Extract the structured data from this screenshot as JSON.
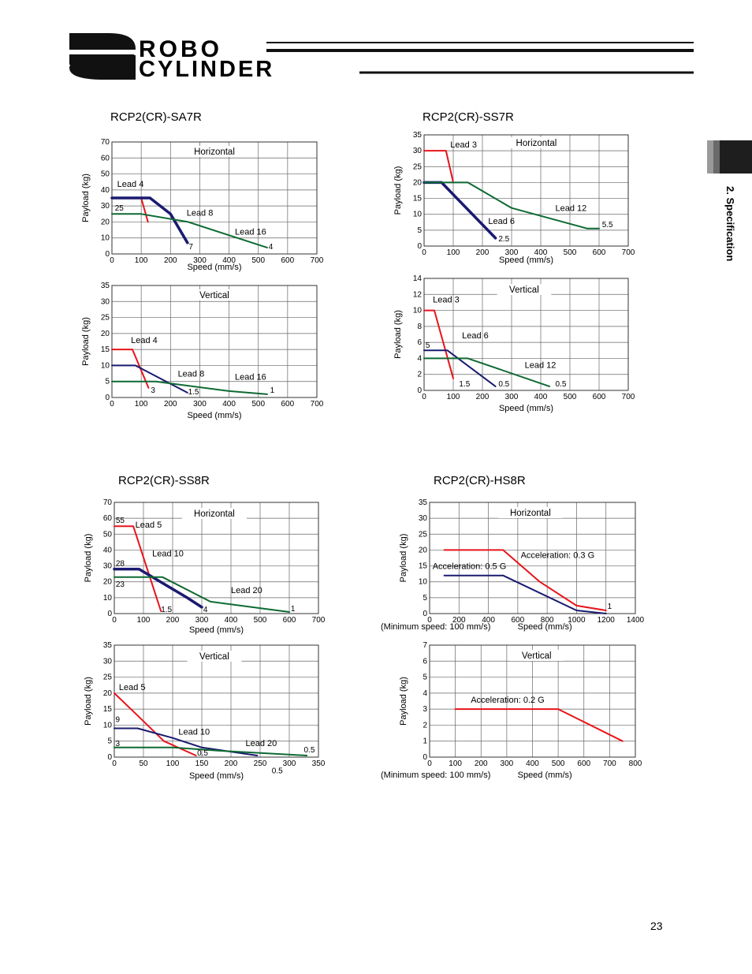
{
  "header": {
    "logo_mark": "RC",
    "logo_line1": "ROBO",
    "logo_line2": "CYLINDER"
  },
  "side_tab": {
    "label": "2. Specification"
  },
  "page_number": "23",
  "colors": {
    "red": "#e8141b",
    "navy": "#1a1a70",
    "green": "#0e6a33",
    "grid": "#666666"
  },
  "models": [
    {
      "title": "RCP2(CR)-SA7R"
    },
    {
      "title": "RCP2(CR)-SS7R"
    },
    {
      "title": "RCP2(CR)-SS8R"
    },
    {
      "title": "RCP2(CR)-HS8R"
    }
  ],
  "chart_data": [
    {
      "id": "sa7r-h",
      "type": "line",
      "title": "Horizontal",
      "xlabel": "Speed (mm/s)",
      "ylabel": "Payload (kg)",
      "xlim": [
        0,
        700
      ],
      "ylim": [
        0,
        70
      ],
      "xticks": [
        0,
        100,
        200,
        300,
        400,
        500,
        600,
        700
      ],
      "yticks": [
        0,
        10,
        20,
        30,
        40,
        50,
        60,
        70
      ],
      "series": [
        {
          "name": "Lead 4",
          "color": "red",
          "width": 2,
          "x": [
            0,
            100,
            123
          ],
          "y": [
            35,
            35,
            20
          ]
        },
        {
          "name": "Lead 8",
          "color": "navy",
          "width": 3.5,
          "x": [
            0,
            130,
            200,
            258
          ],
          "y": [
            35,
            35,
            25,
            7
          ]
        },
        {
          "name": "Lead 16",
          "color": "green",
          "width": 2,
          "x": [
            0,
            100,
            260,
            530
          ],
          "y": [
            25,
            25,
            20,
            4
          ]
        }
      ],
      "labels": [
        {
          "text": "Lead 4",
          "x": 18,
          "y": 42
        },
        {
          "text": "Lead 8",
          "x": 255,
          "y": 24
        },
        {
          "text": "Lead 16",
          "x": 420,
          "y": 12
        },
        {
          "text": "25",
          "x": 10,
          "y": 27
        },
        {
          "text": "7",
          "x": 262,
          "y": 3
        },
        {
          "text": "4",
          "x": 535,
          "y": 3
        }
      ]
    },
    {
      "id": "sa7r-v",
      "type": "line",
      "title": "Vertical",
      "xlabel": "Speed (mm/s)",
      "ylabel": "Payload (kg)",
      "xlim": [
        0,
        700
      ],
      "ylim": [
        0,
        35
      ],
      "xticks": [
        0,
        100,
        200,
        300,
        400,
        500,
        600,
        700
      ],
      "yticks": [
        0,
        5,
        10,
        15,
        20,
        25,
        30,
        35
      ],
      "series": [
        {
          "name": "Lead 4",
          "color": "red",
          "width": 2,
          "x": [
            0,
            70,
            125
          ],
          "y": [
            15,
            15,
            3
          ]
        },
        {
          "name": "Lead 8",
          "color": "navy",
          "width": 2,
          "x": [
            0,
            80,
            258
          ],
          "y": [
            10,
            10,
            1.5
          ]
        },
        {
          "name": "Lead 16",
          "color": "green",
          "width": 2,
          "x": [
            0,
            150,
            400,
            530
          ],
          "y": [
            5,
            5,
            2,
            1
          ]
        }
      ],
      "labels": [
        {
          "text": "Lead 4",
          "x": 65,
          "y": 17
        },
        {
          "text": "Lead 8",
          "x": 225,
          "y": 6.5
        },
        {
          "text": "Lead 16",
          "x": 420,
          "y": 5.5
        },
        {
          "text": "3",
          "x": 133,
          "y": 1.5
        },
        {
          "text": "1.5",
          "x": 260,
          "y": 1
        },
        {
          "text": "1",
          "x": 540,
          "y": 1.5
        }
      ]
    },
    {
      "id": "ss7r-h",
      "type": "line",
      "title": "Horizontal",
      "xlabel": "Speed (mm/s)",
      "ylabel": "Payload (kg)",
      "xlim": [
        0,
        700
      ],
      "ylim": [
        0,
        35
      ],
      "xticks": [
        0,
        100,
        200,
        300,
        400,
        500,
        600,
        700
      ],
      "yticks": [
        0,
        5,
        10,
        15,
        20,
        25,
        30,
        35
      ],
      "series": [
        {
          "name": "Lead 3",
          "color": "red",
          "width": 2,
          "x": [
            0,
            75,
            100
          ],
          "y": [
            30,
            30,
            20
          ]
        },
        {
          "name": "Lead 6",
          "color": "navy",
          "width": 3.5,
          "x": [
            0,
            60,
            245
          ],
          "y": [
            20,
            20,
            2.5
          ]
        },
        {
          "name": "Lead 12",
          "color": "green",
          "width": 2,
          "x": [
            0,
            150,
            300,
            560,
            600
          ],
          "y": [
            20,
            20,
            12,
            5.5,
            5.5
          ]
        }
      ],
      "labels": [
        {
          "text": "Lead 3",
          "x": 90,
          "y": 31
        },
        {
          "text": "Lead 6",
          "x": 220,
          "y": 7
        },
        {
          "text": "Lead 12",
          "x": 450,
          "y": 11
        },
        {
          "text": "2.5",
          "x": 255,
          "y": 1.5
        },
        {
          "text": "5.5",
          "x": 610,
          "y": 6
        }
      ]
    },
    {
      "id": "ss7r-v",
      "type": "line",
      "title": "Vertical",
      "xlabel": "Speed (mm/s)",
      "ylabel": "Payload (kg)",
      "xlim": [
        0,
        700
      ],
      "ylim": [
        0,
        14
      ],
      "xticks": [
        0,
        100,
        200,
        300,
        400,
        500,
        600,
        700
      ],
      "yticks": [
        0,
        2,
        4,
        6,
        8,
        10,
        12,
        14
      ],
      "series": [
        {
          "name": "Lead 3",
          "color": "red",
          "width": 2,
          "x": [
            0,
            35,
            100
          ],
          "y": [
            10,
            10,
            1.5
          ]
        },
        {
          "name": "Lead 6",
          "color": "navy",
          "width": 2,
          "x": [
            0,
            80,
            245
          ],
          "y": [
            5,
            5,
            0.5
          ]
        },
        {
          "name": "Lead 12",
          "color": "green",
          "width": 2,
          "x": [
            0,
            150,
            430
          ],
          "y": [
            4,
            4,
            0.5
          ]
        }
      ],
      "labels": [
        {
          "text": "Lead 3",
          "x": 30,
          "y": 11
        },
        {
          "text": "Lead 6",
          "x": 130,
          "y": 6.5
        },
        {
          "text": "Lead 12",
          "x": 345,
          "y": 2.8
        },
        {
          "text": "5",
          "x": 5,
          "y": 5.3
        },
        {
          "text": "1.5",
          "x": 120,
          "y": 0.5
        },
        {
          "text": "0.5",
          "x": 255,
          "y": 0.5
        },
        {
          "text": "0.5",
          "x": 450,
          "y": 0.5
        }
      ]
    },
    {
      "id": "ss8r-h",
      "type": "line",
      "title": "Horizontal",
      "xlabel": "Speed (mm/s)",
      "ylabel": "Payload (kg)",
      "xlim": [
        0,
        700
      ],
      "ylim": [
        0,
        70
      ],
      "xticks": [
        0,
        100,
        200,
        300,
        400,
        500,
        600,
        700
      ],
      "yticks": [
        0,
        10,
        20,
        30,
        40,
        50,
        60,
        70
      ],
      "series": [
        {
          "name": "Lead 5",
          "color": "red",
          "width": 2,
          "x": [
            0,
            65,
            160
          ],
          "y": [
            55,
            55,
            1.5
          ]
        },
        {
          "name": "Lead 10",
          "color": "navy",
          "width": 3.5,
          "x": [
            0,
            85,
            250,
            300
          ],
          "y": [
            28,
            28,
            10,
            4
          ]
        },
        {
          "name": "Lead 20",
          "color": "green",
          "width": 2,
          "x": [
            0,
            165,
            330,
            600
          ],
          "y": [
            23,
            23,
            7.5,
            1
          ]
        }
      ],
      "labels": [
        {
          "text": "Lead 5",
          "x": 72,
          "y": 54
        },
        {
          "text": "Lead 10",
          "x": 130,
          "y": 36
        },
        {
          "text": "Lead 20",
          "x": 400,
          "y": 13
        },
        {
          "text": "55",
          "x": 5,
          "y": 57
        },
        {
          "text": "28",
          "x": 5,
          "y": 30
        },
        {
          "text": "23",
          "x": 5,
          "y": 17
        },
        {
          "text": "1.5",
          "x": 160,
          "y": 1
        },
        {
          "text": "4",
          "x": 305,
          "y": 1
        },
        {
          "text": "1",
          "x": 605,
          "y": 1.5
        }
      ]
    },
    {
      "id": "ss8r-v",
      "type": "line",
      "title": "Vertical",
      "xlabel": "Speed (mm/s)",
      "ylabel": "Payload (kg)",
      "xlim": [
        0,
        350
      ],
      "ylim": [
        0,
        35
      ],
      "xticks": [
        0,
        50,
        100,
        150,
        200,
        250,
        300,
        350
      ],
      "yticks": [
        0,
        5,
        10,
        15,
        20,
        25,
        30,
        35
      ],
      "series": [
        {
          "name": "Lead 5",
          "color": "red",
          "width": 2,
          "x": [
            0,
            40,
            85,
            140
          ],
          "y": [
            20,
            13,
            5,
            0.5
          ]
        },
        {
          "name": "Lead 10",
          "color": "navy",
          "width": 2,
          "x": [
            0,
            40,
            100,
            150,
            245
          ],
          "y": [
            9,
            9,
            6,
            3,
            0.5
          ]
        },
        {
          "name": "Lead 20",
          "color": "green",
          "width": 2,
          "x": [
            0,
            100,
            180,
            330
          ],
          "y": [
            3,
            3,
            2,
            0.5
          ]
        }
      ],
      "labels": [
        {
          "text": "Lead 5",
          "x": 8,
          "y": 21
        },
        {
          "text": "Lead 10",
          "x": 110,
          "y": 7
        },
        {
          "text": "Lead 20",
          "x": 225,
          "y": 3.5
        },
        {
          "text": "9",
          "x": 2,
          "y": 11
        },
        {
          "text": "3",
          "x": 2,
          "y": 3.5
        },
        {
          "text": "0.5",
          "x": 142,
          "y": 0.5
        },
        {
          "text": "0.5",
          "x": 325,
          "y": 1.5
        },
        {
          "text": "0.5",
          "x": 270,
          "y": -5
        }
      ]
    },
    {
      "id": "hs8r-h",
      "type": "line",
      "title": "Horizontal",
      "xlabel": "Speed (mm/s)",
      "ylabel": "Payload (kg)",
      "note": "(Minimum speed: 100 mm/s)",
      "xlim": [
        0,
        1400
      ],
      "ylim": [
        0,
        35
      ],
      "xticks": [
        0,
        200,
        400,
        600,
        800,
        1000,
        1200,
        1400
      ],
      "yticks": [
        0,
        5,
        10,
        15,
        20,
        25,
        30,
        35
      ],
      "series": [
        {
          "name": "Acceleration: 0.3 G",
          "color": "red",
          "width": 2,
          "x": [
            100,
            500,
            750,
            1000,
            1200
          ],
          "y": [
            20,
            20,
            10,
            2.5,
            1
          ]
        },
        {
          "name": "Acceleration: 0.5 G",
          "color": "navy",
          "width": 2,
          "x": [
            100,
            500,
            1000,
            1200
          ],
          "y": [
            12,
            12,
            1,
            0
          ]
        }
      ],
      "labels": [
        {
          "text": "Acceleration: 0.3 G",
          "x": 620,
          "y": 17.5
        },
        {
          "text": "Acceleration: 0.5 G",
          "x": 20,
          "y": 14
        },
        {
          "text": "1",
          "x": 1210,
          "y": 1.5
        }
      ]
    },
    {
      "id": "hs8r-v",
      "type": "line",
      "title": "Vertical",
      "xlabel": "Speed (mm/s)",
      "ylabel": "Payload (kg)",
      "note": "(Minimum speed: 100 mm/s)",
      "xlim": [
        0,
        800
      ],
      "ylim": [
        0,
        7
      ],
      "xticks": [
        0,
        100,
        200,
        300,
        400,
        500,
        600,
        700,
        800
      ],
      "yticks": [
        0,
        1,
        2,
        3,
        4,
        5,
        6,
        7
      ],
      "series": [
        {
          "name": "Acceleration: 0.2 G",
          "color": "red",
          "width": 2,
          "x": [
            100,
            500,
            750
          ],
          "y": [
            3,
            3,
            1
          ]
        }
      ],
      "labels": [
        {
          "text": "Acceleration: 0.2 G",
          "x": 160,
          "y": 3.4
        }
      ]
    }
  ]
}
